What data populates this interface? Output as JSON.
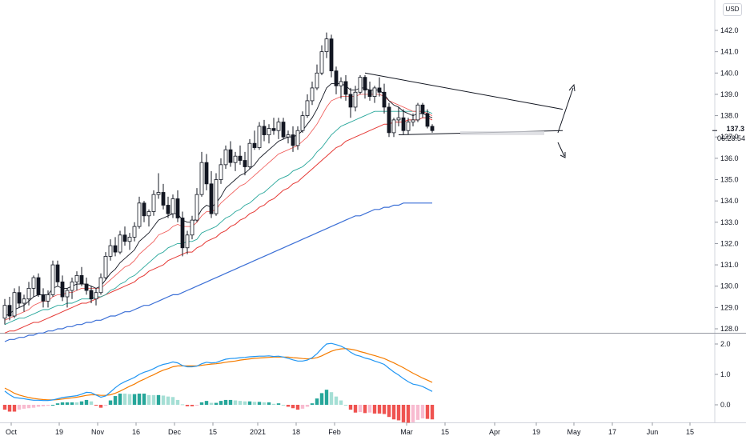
{
  "currency_label": "USD",
  "current_price": "137.3",
  "countdown": "06:28:54",
  "colors": {
    "up_candle": "#ffffff",
    "down_candle": "#131722",
    "ema_fast": "#131722",
    "ema_short": "#ef5350",
    "ema_mid": "#26a69a",
    "ema_mid_red": "#e53935",
    "ema_long": "#3b6fd6",
    "macd": "#2196f3",
    "signal": "#f57c00",
    "hist_pos": "#26a69a",
    "hist_neg": "#ef5350",
    "trendline": "#131722"
  },
  "chart_data": [
    {
      "type": "candlestick",
      "title": "",
      "ylim": [
        127.8,
        142.4
      ],
      "y_ticks": [
        "128.0",
        "129.0",
        "130.0",
        "131.0",
        "132.0",
        "133.0",
        "134.0",
        "135.0",
        "136.0",
        "137.0",
        "138.0",
        "139.0",
        "140.0",
        "141.0",
        "142.0"
      ],
      "x_ticks": [
        "Oct",
        "19",
        "Nov",
        "16",
        "Dec",
        "15",
        "2021",
        "18",
        "Feb",
        "Mar",
        "15",
        "Apr",
        "19",
        "May",
        "17",
        "Jun",
        "15"
      ],
      "candles": [
        [
          128.5,
          129.4,
          128.2,
          129.1
        ],
        [
          129.1,
          129.5,
          128.4,
          128.6
        ],
        [
          128.6,
          129.9,
          128.5,
          129.7
        ],
        [
          129.7,
          130.0,
          129.0,
          129.2
        ],
        [
          129.2,
          129.6,
          128.8,
          129.4
        ],
        [
          129.4,
          130.2,
          129.1,
          129.9
        ],
        [
          129.9,
          130.5,
          129.5,
          130.4
        ],
        [
          130.4,
          130.6,
          129.5,
          129.6
        ],
        [
          129.6,
          129.9,
          129.0,
          129.3
        ],
        [
          129.3,
          129.8,
          129.0,
          129.6
        ],
        [
          129.6,
          131.2,
          129.5,
          131.0
        ],
        [
          131.0,
          131.2,
          130.0,
          130.2
        ],
        [
          130.2,
          130.5,
          129.3,
          129.5
        ],
        [
          129.5,
          129.9,
          129.0,
          129.8
        ],
        [
          129.8,
          130.4,
          129.4,
          130.2
        ],
        [
          130.2,
          130.7,
          129.8,
          130.5
        ],
        [
          130.5,
          130.9,
          130.0,
          130.1
        ],
        [
          130.1,
          130.4,
          129.6,
          129.8
        ],
        [
          129.8,
          130.0,
          129.2,
          129.4
        ],
        [
          129.4,
          129.9,
          129.1,
          129.7
        ],
        [
          129.7,
          130.6,
          129.6,
          130.4
        ],
        [
          130.4,
          131.6,
          130.3,
          131.4
        ],
        [
          131.4,
          132.2,
          131.2,
          131.9
        ],
        [
          131.9,
          132.3,
          131.4,
          131.6
        ],
        [
          131.6,
          132.6,
          131.5,
          132.4
        ],
        [
          132.4,
          132.8,
          131.9,
          132.1
        ],
        [
          132.1,
          132.5,
          131.7,
          132.3
        ],
        [
          132.3,
          133.0,
          132.1,
          132.8
        ],
        [
          132.8,
          134.2,
          132.7,
          133.9
        ],
        [
          133.9,
          134.0,
          133.0,
          133.3
        ],
        [
          133.3,
          133.6,
          132.8,
          133.5
        ],
        [
          133.5,
          134.5,
          133.3,
          134.3
        ],
        [
          134.3,
          135.3,
          134.1,
          134.4
        ],
        [
          134.4,
          134.8,
          133.6,
          133.8
        ],
        [
          133.8,
          134.2,
          133.2,
          133.4
        ],
        [
          133.4,
          134.3,
          133.2,
          134.1
        ],
        [
          134.1,
          134.5,
          133.0,
          133.2
        ],
        [
          133.2,
          133.5,
          131.4,
          131.8
        ],
        [
          131.8,
          132.6,
          131.5,
          132.4
        ],
        [
          132.4,
          133.3,
          132.2,
          133.1
        ],
        [
          133.1,
          134.6,
          133.0,
          134.3
        ],
        [
          134.3,
          136.3,
          134.2,
          135.8
        ],
        [
          135.8,
          136.2,
          134.5,
          134.8
        ],
        [
          134.8,
          135.4,
          133.2,
          133.4
        ],
        [
          133.4,
          135.3,
          133.3,
          135.0
        ],
        [
          135.0,
          136.0,
          134.8,
          135.7
        ],
        [
          135.7,
          136.6,
          135.5,
          136.4
        ],
        [
          136.4,
          136.8,
          135.6,
          135.8
        ],
        [
          135.8,
          136.3,
          135.4,
          136.1
        ],
        [
          136.1,
          136.6,
          135.7,
          135.9
        ],
        [
          135.9,
          136.3,
          135.2,
          135.6
        ],
        [
          135.6,
          136.9,
          135.5,
          136.7
        ],
        [
          136.7,
          137.3,
          136.4,
          136.5
        ],
        [
          136.5,
          137.7,
          136.4,
          137.5
        ],
        [
          137.5,
          137.8,
          136.8,
          137.1
        ],
        [
          137.1,
          137.6,
          136.7,
          137.4
        ],
        [
          137.4,
          137.9,
          137.1,
          137.3
        ],
        [
          137.3,
          137.9,
          136.9,
          137.7
        ],
        [
          137.7,
          137.9,
          136.9,
          137.0
        ],
        [
          137.0,
          137.3,
          136.7,
          137.1
        ],
        [
          137.1,
          137.5,
          136.3,
          136.6
        ],
        [
          136.6,
          137.5,
          136.4,
          137.3
        ],
        [
          137.3,
          138.2,
          137.2,
          138.0
        ],
        [
          138.0,
          139.0,
          137.9,
          138.7
        ],
        [
          138.7,
          139.6,
          138.5,
          139.3
        ],
        [
          139.3,
          140.4,
          139.2,
          140.0
        ],
        [
          140.0,
          141.3,
          139.9,
          141.0
        ],
        [
          141.0,
          141.9,
          140.7,
          141.6
        ],
        [
          141.6,
          141.8,
          139.8,
          140.1
        ],
        [
          140.1,
          140.3,
          139.0,
          139.4
        ],
        [
          139.4,
          139.8,
          138.8,
          139.6
        ],
        [
          139.6,
          139.9,
          138.7,
          139.0
        ],
        [
          139.0,
          139.3,
          137.9,
          138.4
        ],
        [
          138.4,
          139.4,
          138.2,
          139.1
        ],
        [
          139.1,
          139.9,
          139.0,
          139.8
        ],
        [
          139.8,
          139.9,
          138.8,
          139.2
        ],
        [
          139.2,
          139.6,
          138.7,
          138.9
        ],
        [
          138.9,
          139.4,
          138.6,
          139.3
        ],
        [
          139.3,
          139.8,
          138.9,
          139.1
        ],
        [
          139.1,
          139.5,
          138.1,
          138.4
        ],
        [
          138.4,
          138.6,
          137.0,
          137.2
        ],
        [
          137.2,
          137.9,
          137.0,
          137.8
        ],
        [
          137.8,
          138.4,
          137.5,
          137.9
        ],
        [
          137.9,
          138.3,
          137.1,
          137.3
        ],
        [
          137.3,
          137.9,
          137.1,
          137.7
        ],
        [
          137.7,
          138.1,
          137.5,
          137.8
        ],
        [
          137.8,
          138.6,
          137.7,
          138.5
        ],
        [
          138.5,
          138.6,
          137.9,
          138.1
        ],
        [
          138.1,
          138.3,
          137.4,
          137.5
        ],
        [
          137.5,
          137.6,
          137.2,
          137.3
        ]
      ],
      "ema_fast": [
        128.6,
        128.7,
        128.9,
        129.0,
        129.1,
        129.3,
        129.5,
        129.6,
        129.6,
        129.6,
        129.9,
        130.0,
        129.9,
        129.9,
        130.0,
        130.1,
        130.1,
        130.1,
        130.0,
        129.9,
        130.0,
        130.3,
        130.6,
        130.8,
        131.1,
        131.3,
        131.5,
        131.7,
        132.1,
        132.3,
        132.5,
        132.8,
        133.1,
        133.2,
        133.3,
        133.4,
        133.4,
        133.1,
        133.0,
        133.0,
        133.2,
        133.6,
        133.8,
        133.7,
        133.9,
        134.2,
        134.6,
        134.8,
        135.0,
        135.2,
        135.3,
        135.5,
        135.7,
        136.0,
        136.2,
        136.4,
        136.6,
        136.8,
        136.9,
        137.0,
        137.0,
        137.1,
        137.3,
        137.6,
        137.9,
        138.3,
        138.8,
        139.3,
        139.5,
        139.5,
        139.5,
        139.4,
        139.2,
        139.2,
        139.3,
        139.3,
        139.2,
        139.2,
        139.2,
        139.0,
        138.7,
        138.5,
        138.4,
        138.2,
        138.1,
        138.0,
        138.1,
        138.1,
        138.0,
        137.9
      ],
      "ema_short": [
        128.4,
        128.5,
        128.6,
        128.7,
        128.8,
        128.9,
        129.1,
        129.2,
        129.3,
        129.3,
        129.5,
        129.6,
        129.6,
        129.7,
        129.7,
        129.8,
        129.9,
        129.9,
        129.9,
        129.9,
        129.9,
        130.1,
        130.3,
        130.5,
        130.7,
        130.9,
        131.0,
        131.2,
        131.5,
        131.7,
        131.9,
        132.1,
        132.4,
        132.5,
        132.6,
        132.8,
        132.9,
        132.8,
        132.8,
        132.8,
        133.0,
        133.3,
        133.5,
        133.5,
        133.6,
        133.9,
        134.1,
        134.3,
        134.5,
        134.7,
        134.8,
        135.0,
        135.2,
        135.4,
        135.6,
        135.8,
        136.0,
        136.2,
        136.3,
        136.4,
        136.5,
        136.6,
        136.8,
        137.0,
        137.3,
        137.6,
        138.0,
        138.4,
        138.7,
        138.8,
        138.9,
        138.9,
        138.9,
        138.9,
        139.0,
        139.0,
        139.0,
        139.0,
        139.0,
        138.9,
        138.7,
        138.6,
        138.5,
        138.4,
        138.3,
        138.2,
        138.2,
        138.2,
        138.1,
        138.0
      ],
      "ema_mid": [
        128.2,
        128.3,
        128.4,
        128.5,
        128.5,
        128.6,
        128.7,
        128.8,
        128.9,
        128.9,
        129.0,
        129.1,
        129.1,
        129.2,
        129.2,
        129.3,
        129.4,
        129.4,
        129.4,
        129.5,
        129.5,
        129.6,
        129.8,
        129.9,
        130.1,
        130.2,
        130.4,
        130.5,
        130.7,
        130.9,
        131.1,
        131.3,
        131.5,
        131.6,
        131.8,
        131.9,
        132.0,
        132.0,
        132.1,
        132.1,
        132.2,
        132.5,
        132.6,
        132.7,
        132.8,
        133.0,
        133.2,
        133.3,
        133.5,
        133.6,
        133.8,
        133.9,
        134.1,
        134.3,
        134.4,
        134.6,
        134.8,
        135.0,
        135.1,
        135.2,
        135.4,
        135.5,
        135.6,
        135.8,
        136.0,
        136.3,
        136.5,
        136.8,
        137.1,
        137.3,
        137.5,
        137.6,
        137.7,
        137.8,
        137.9,
        138.0,
        138.1,
        138.2,
        138.2,
        138.2,
        138.2,
        138.2,
        138.2,
        138.2,
        138.2,
        138.2,
        138.2,
        138.2,
        138.2,
        138.1
      ],
      "ema_mid_red": [
        127.8,
        127.9,
        127.9,
        128.0,
        128.1,
        128.2,
        128.3,
        128.3,
        128.4,
        128.5,
        128.6,
        128.7,
        128.8,
        128.9,
        129.0,
        129.1,
        129.2,
        129.2,
        129.3,
        129.4,
        129.5,
        129.6,
        129.7,
        129.8,
        129.9,
        130.0,
        130.1,
        130.2,
        130.4,
        130.5,
        130.7,
        130.8,
        130.9,
        131.0,
        131.2,
        131.3,
        131.4,
        131.5,
        131.6,
        131.6,
        131.8,
        131.9,
        132.1,
        132.2,
        132.3,
        132.5,
        132.6,
        132.8,
        132.9,
        133.1,
        133.2,
        133.4,
        133.5,
        133.7,
        133.8,
        134.0,
        134.1,
        134.3,
        134.5,
        134.6,
        134.8,
        134.9,
        135.1,
        135.3,
        135.5,
        135.7,
        135.9,
        136.1,
        136.3,
        136.5,
        136.6,
        136.8,
        136.9,
        137.0,
        137.1,
        137.2,
        137.3,
        137.4,
        137.5,
        137.6,
        137.6,
        137.7,
        137.7,
        137.7,
        137.8,
        137.8,
        137.8,
        137.9,
        137.9,
        137.8
      ],
      "ema_long": [
        127.4,
        127.5,
        127.5,
        127.6,
        127.6,
        127.7,
        127.7,
        127.8,
        127.8,
        127.9,
        127.9,
        128.0,
        128.0,
        128.1,
        128.1,
        128.2,
        128.2,
        128.3,
        128.3,
        128.4,
        128.4,
        128.5,
        128.6,
        128.6,
        128.7,
        128.8,
        128.8,
        128.9,
        129.0,
        129.1,
        129.1,
        129.2,
        129.3,
        129.4,
        129.5,
        129.6,
        129.6,
        129.7,
        129.8,
        129.9,
        130.0,
        130.1,
        130.2,
        130.3,
        130.4,
        130.5,
        130.6,
        130.7,
        130.8,
        130.9,
        131.0,
        131.1,
        131.2,
        131.3,
        131.4,
        131.5,
        131.6,
        131.7,
        131.8,
        131.9,
        132.0,
        132.1,
        132.2,
        132.3,
        132.4,
        132.5,
        132.6,
        132.7,
        132.8,
        132.9,
        133.0,
        133.1,
        133.2,
        133.3,
        133.3,
        133.4,
        133.5,
        133.6,
        133.6,
        133.7,
        133.7,
        133.8,
        133.8,
        133.9,
        133.9,
        133.9,
        133.9,
        133.9,
        133.9,
        133.9
      ],
      "trendline_upper": [
        [
          75,
          140.0
        ],
        [
          97,
          138.3
        ]
      ],
      "trendline_lower": [
        [
          82,
          137.1
        ],
        [
          97,
          137.3
        ]
      ],
      "arrows": [
        "up",
        "down"
      ]
    },
    {
      "type": "macd",
      "ylim": [
        -0.4,
        2.3
      ],
      "y_ticks": [
        "0.0",
        "1.0",
        "2.0"
      ],
      "macd": [
        0.45,
        0.33,
        0.24,
        0.22,
        0.2,
        0.17,
        0.15,
        0.15,
        0.14,
        0.14,
        0.16,
        0.2,
        0.24,
        0.26,
        0.28,
        0.3,
        0.35,
        0.41,
        0.4,
        0.32,
        0.25,
        0.29,
        0.42,
        0.56,
        0.68,
        0.76,
        0.83,
        0.9,
        1.0,
        1.07,
        1.12,
        1.19,
        1.27,
        1.33,
        1.36,
        1.41,
        1.38,
        1.29,
        1.25,
        1.25,
        1.27,
        1.35,
        1.4,
        1.38,
        1.39,
        1.45,
        1.5,
        1.52,
        1.53,
        1.55,
        1.56,
        1.58,
        1.59,
        1.6,
        1.6,
        1.61,
        1.59,
        1.6,
        1.57,
        1.53,
        1.48,
        1.44,
        1.44,
        1.47,
        1.55,
        1.68,
        1.85,
        2.0,
        2.02,
        1.98,
        1.93,
        1.85,
        1.73,
        1.64,
        1.6,
        1.54,
        1.5,
        1.44,
        1.39,
        1.33,
        1.2,
        1.08,
        0.98,
        0.86,
        0.76,
        0.68,
        0.65,
        0.6,
        0.52,
        0.44
      ],
      "signal": [
        0.55,
        0.47,
        0.38,
        0.32,
        0.28,
        0.24,
        0.21,
        0.19,
        0.17,
        0.16,
        0.16,
        0.17,
        0.19,
        0.21,
        0.23,
        0.25,
        0.28,
        0.31,
        0.33,
        0.33,
        0.31,
        0.31,
        0.33,
        0.38,
        0.45,
        0.53,
        0.61,
        0.68,
        0.77,
        0.84,
        0.92,
        0.99,
        1.07,
        1.14,
        1.19,
        1.25,
        1.28,
        1.28,
        1.28,
        1.28,
        1.28,
        1.3,
        1.32,
        1.34,
        1.35,
        1.37,
        1.4,
        1.42,
        1.44,
        1.47,
        1.49,
        1.51,
        1.53,
        1.54,
        1.55,
        1.56,
        1.57,
        1.57,
        1.57,
        1.57,
        1.55,
        1.54,
        1.52,
        1.51,
        1.52,
        1.55,
        1.61,
        1.69,
        1.76,
        1.81,
        1.84,
        1.85,
        1.83,
        1.8,
        1.75,
        1.71,
        1.66,
        1.62,
        1.57,
        1.52,
        1.45,
        1.38,
        1.3,
        1.22,
        1.13,
        1.04,
        0.96,
        0.88,
        0.81,
        0.74
      ]
    }
  ]
}
